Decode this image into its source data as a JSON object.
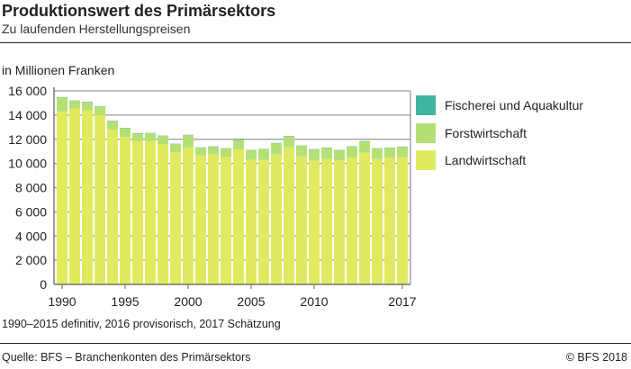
{
  "header": {
    "title": "Produktionswert des Primärsektors",
    "subtitle": "Zu laufenden Herstellungspreisen"
  },
  "footer": {
    "note": "1990–2015 definitiv, 2016 provisorisch, 2017 Schätzung",
    "source": "Quelle: BFS – Branchenkonten des Primärsektors",
    "copyright": "© BFS  2018"
  },
  "chart_data": {
    "type": "bar",
    "stacked": true,
    "ylabel": "in Millionen Franken",
    "ylim": [
      0,
      16000
    ],
    "yticks": [
      0,
      2000,
      4000,
      6000,
      8000,
      10000,
      12000,
      14000,
      16000
    ],
    "ytick_labels": [
      "0",
      "2 000",
      "4 000",
      "6 000",
      "8 000",
      "10 000",
      "12 000",
      "14 000",
      "16 000"
    ],
    "grid": true,
    "legend": "right",
    "categories": [
      1990,
      1991,
      1992,
      1993,
      1994,
      1995,
      1996,
      1997,
      1998,
      1999,
      2000,
      2001,
      2002,
      2003,
      2004,
      2005,
      2006,
      2007,
      2008,
      2009,
      2010,
      2011,
      2012,
      2013,
      2014,
      2015,
      2016,
      2017
    ],
    "xtick_labels": [
      "1990",
      "1995",
      "2000",
      "2005",
      "2010",
      "2017"
    ],
    "series": [
      {
        "name": "Landwirtschaft",
        "color": "#e1ea5f",
        "values": [
          14300,
          14540,
          14400,
          14020,
          12810,
          12200,
          11850,
          11870,
          11580,
          10910,
          11310,
          10670,
          10740,
          10540,
          11150,
          10300,
          10300,
          10740,
          11330,
          10590,
          10240,
          10390,
          10270,
          10520,
          10890,
          10390,
          10470,
          10520
        ]
      },
      {
        "name": "Forstwirtschaft",
        "color": "#b5e075",
        "values": [
          1150,
          630,
          670,
          690,
          690,
          710,
          620,
          620,
          690,
          690,
          1030,
          630,
          640,
          690,
          780,
          780,
          870,
          930,
          910,
          860,
          910,
          890,
          810,
          860,
          930,
          840,
          810,
          840
        ]
      },
      {
        "name": "Fischerei und Aquakultur",
        "color": "#3fb59f",
        "values": [
          30,
          30,
          30,
          30,
          30,
          30,
          30,
          30,
          30,
          30,
          30,
          30,
          30,
          30,
          30,
          30,
          30,
          30,
          30,
          30,
          30,
          30,
          30,
          30,
          30,
          30,
          30,
          30
        ]
      }
    ]
  }
}
